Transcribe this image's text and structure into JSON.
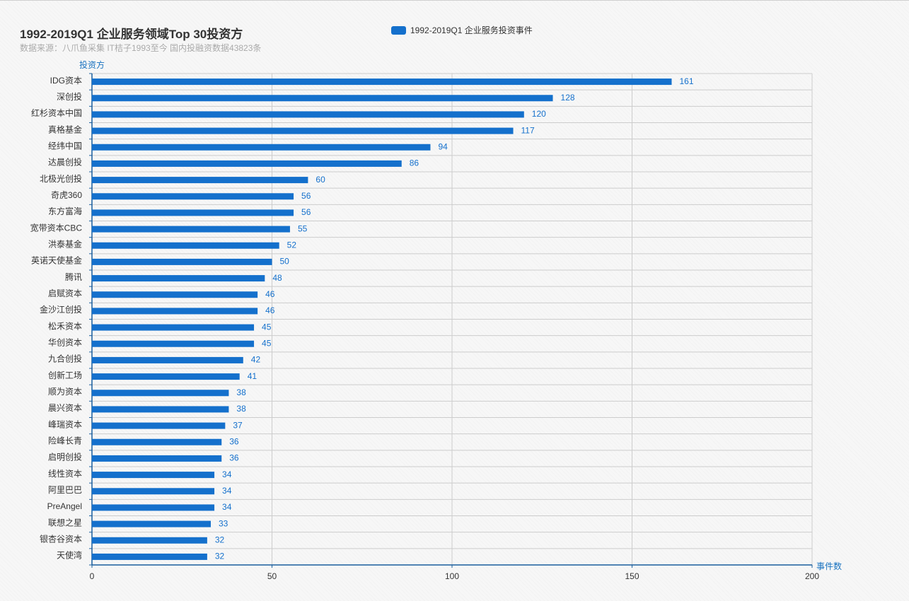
{
  "chart_data": {
    "type": "bar",
    "orientation": "horizontal",
    "title": "1992-2019Q1 企业服务领域Top 30投资方",
    "subtitle": "数据来源：八爪鱼采集 IT桔子1993至今 国内投融资数据43823条",
    "ylabel": "投资方",
    "xlabel": "事件数",
    "xlim": [
      0,
      200
    ],
    "xticks": [
      0,
      50,
      100,
      150,
      200
    ],
    "grid": true,
    "legend_position": "top-center",
    "bar_color": "#1470cc",
    "categories": [
      "IDG资本",
      "深创投",
      "红杉资本中国",
      "真格基金",
      "经纬中国",
      "达晨创投",
      "北极光创投",
      "奇虎360",
      "东方富海",
      "宽带资本CBC",
      "洪泰基金",
      "英诺天使基金",
      "腾讯",
      "启赋资本",
      "金沙江创投",
      "松禾资本",
      "华创资本",
      "九合创投",
      "创新工场",
      "顺为资本",
      "晨兴资本",
      "峰瑞资本",
      "险峰长青",
      "启明创投",
      "线性资本",
      "阿里巴巴",
      "PreAngel",
      "联想之星",
      "银杏谷资本",
      "天使湾"
    ],
    "series": [
      {
        "name": "1992-2019Q1 企业服务投资事件",
        "values": [
          161,
          128,
          120,
          117,
          94,
          86,
          60,
          56,
          56,
          55,
          52,
          50,
          48,
          46,
          46,
          45,
          45,
          42,
          41,
          38,
          38,
          37,
          36,
          36,
          34,
          34,
          34,
          33,
          32,
          32
        ]
      }
    ]
  }
}
